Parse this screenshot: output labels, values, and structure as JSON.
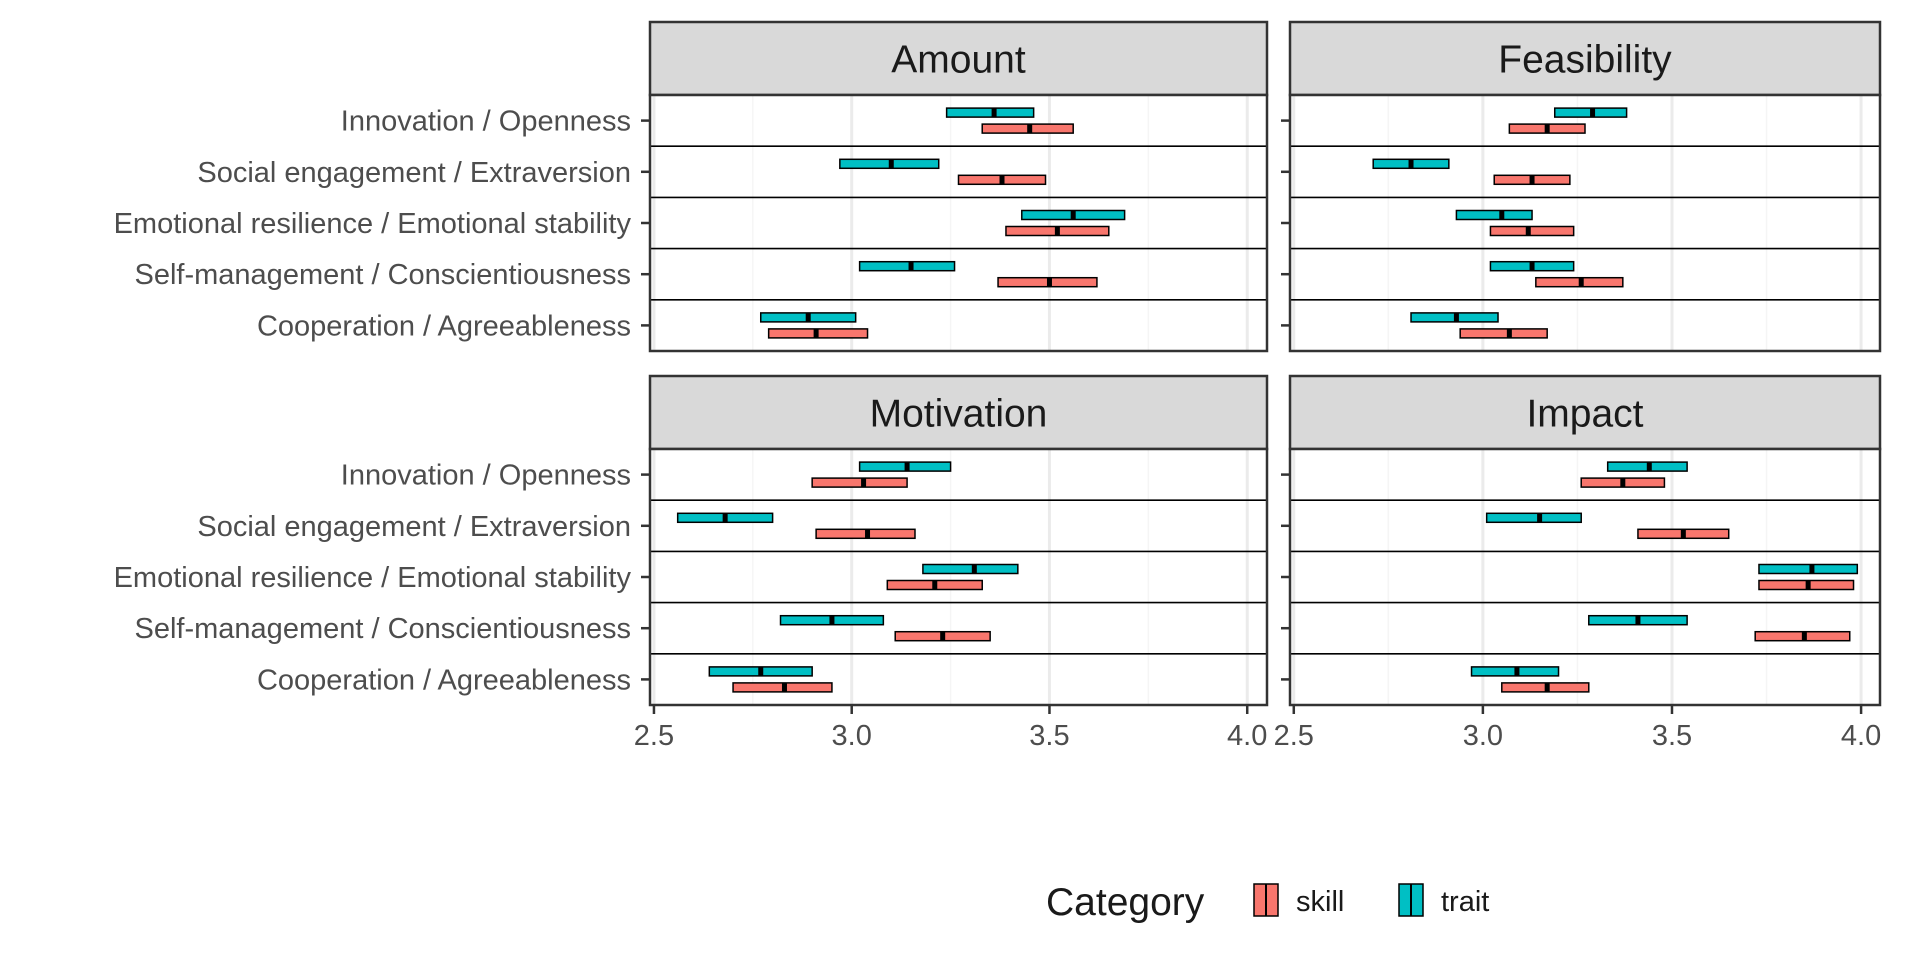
{
  "chart_data": {
    "type": "crossbar",
    "facets": [
      {
        "title": "Amount",
        "categories": [
          "Innovation / Openness",
          "Social engagement / Extraversion",
          "Emotional resilience / Emotional stability",
          "Self-management / Conscientiousness",
          "Cooperation / Agreeableness"
        ],
        "series": [
          {
            "name": "skill",
            "mean": [
              3.45,
              3.38,
              3.52,
              3.5,
              2.91
            ],
            "lower": [
              3.33,
              3.27,
              3.39,
              3.37,
              2.79
            ],
            "upper": [
              3.56,
              3.49,
              3.65,
              3.62,
              3.04
            ]
          },
          {
            "name": "trait",
            "mean": [
              3.36,
              3.1,
              3.56,
              3.15,
              2.89
            ],
            "lower": [
              3.24,
              2.97,
              3.43,
              3.02,
              2.77
            ],
            "upper": [
              3.46,
              3.22,
              3.69,
              3.26,
              3.01
            ]
          }
        ]
      },
      {
        "title": "Feasibility",
        "categories": [
          "Innovation / Openness",
          "Social engagement / Extraversion",
          "Emotional resilience / Emotional stability",
          "Self-management / Conscientiousness",
          "Cooperation / Agreeableness"
        ],
        "series": [
          {
            "name": "skill",
            "mean": [
              3.17,
              3.13,
              3.12,
              3.26,
              3.07
            ],
            "lower": [
              3.07,
              3.03,
              3.02,
              3.14,
              2.94
            ],
            "upper": [
              3.27,
              3.23,
              3.24,
              3.37,
              3.17
            ]
          },
          {
            "name": "trait",
            "mean": [
              3.29,
              2.81,
              3.05,
              3.13,
              2.93
            ],
            "lower": [
              3.19,
              2.71,
              2.93,
              3.02,
              2.81
            ],
            "upper": [
              3.38,
              2.91,
              3.13,
              3.24,
              3.04
            ]
          }
        ]
      },
      {
        "title": "Motivation",
        "categories": [
          "Innovation / Openness",
          "Social engagement / Extraversion",
          "Emotional resilience / Emotional stability",
          "Self-management / Conscientiousness",
          "Cooperation / Agreeableness"
        ],
        "series": [
          {
            "name": "skill",
            "mean": [
              3.03,
              3.04,
              3.21,
              3.23,
              2.83
            ],
            "lower": [
              2.9,
              2.91,
              3.09,
              3.11,
              2.7
            ],
            "upper": [
              3.14,
              3.16,
              3.33,
              3.35,
              2.95
            ]
          },
          {
            "name": "trait",
            "mean": [
              3.14,
              2.68,
              3.31,
              2.95,
              2.77
            ],
            "lower": [
              3.02,
              2.56,
              3.18,
              2.82,
              2.64
            ],
            "upper": [
              3.25,
              2.8,
              3.42,
              3.08,
              2.9
            ]
          }
        ]
      },
      {
        "title": "Impact",
        "categories": [
          "Innovation / Openness",
          "Social engagement / Extraversion",
          "Emotional resilience / Emotional stability",
          "Self-management / Conscientiousness",
          "Cooperation / Agreeableness"
        ],
        "series": [
          {
            "name": "skill",
            "mean": [
              3.37,
              3.53,
              3.86,
              3.85,
              3.17
            ],
            "lower": [
              3.26,
              3.41,
              3.73,
              3.72,
              3.05
            ],
            "upper": [
              3.48,
              3.65,
              3.98,
              3.97,
              3.28
            ]
          },
          {
            "name": "trait",
            "mean": [
              3.44,
              3.15,
              3.87,
              3.41,
              3.09
            ],
            "lower": [
              3.33,
              3.01,
              3.73,
              3.28,
              2.97
            ],
            "upper": [
              3.54,
              3.26,
              3.99,
              3.54,
              3.2
            ]
          }
        ]
      }
    ],
    "x_ticks": [
      2.5,
      3.0,
      3.5,
      4.0
    ],
    "x_tick_labels": [
      "2.5",
      "3.0",
      "3.5",
      "4.0"
    ],
    "xlim": [
      2.49,
      4.05
    ],
    "xlabel": "",
    "ylabel": "",
    "legend": {
      "title": "Category",
      "position": "bottom",
      "entries": [
        "skill",
        "trait"
      ]
    },
    "colors": {
      "skill": "#F8766D",
      "trait": "#00BFC4",
      "strip_bg": "#D9D9D9",
      "grid_major": "#EBEBEB",
      "grid_minor": "#F5F5F5",
      "frame": "#333333"
    },
    "grid": true
  }
}
